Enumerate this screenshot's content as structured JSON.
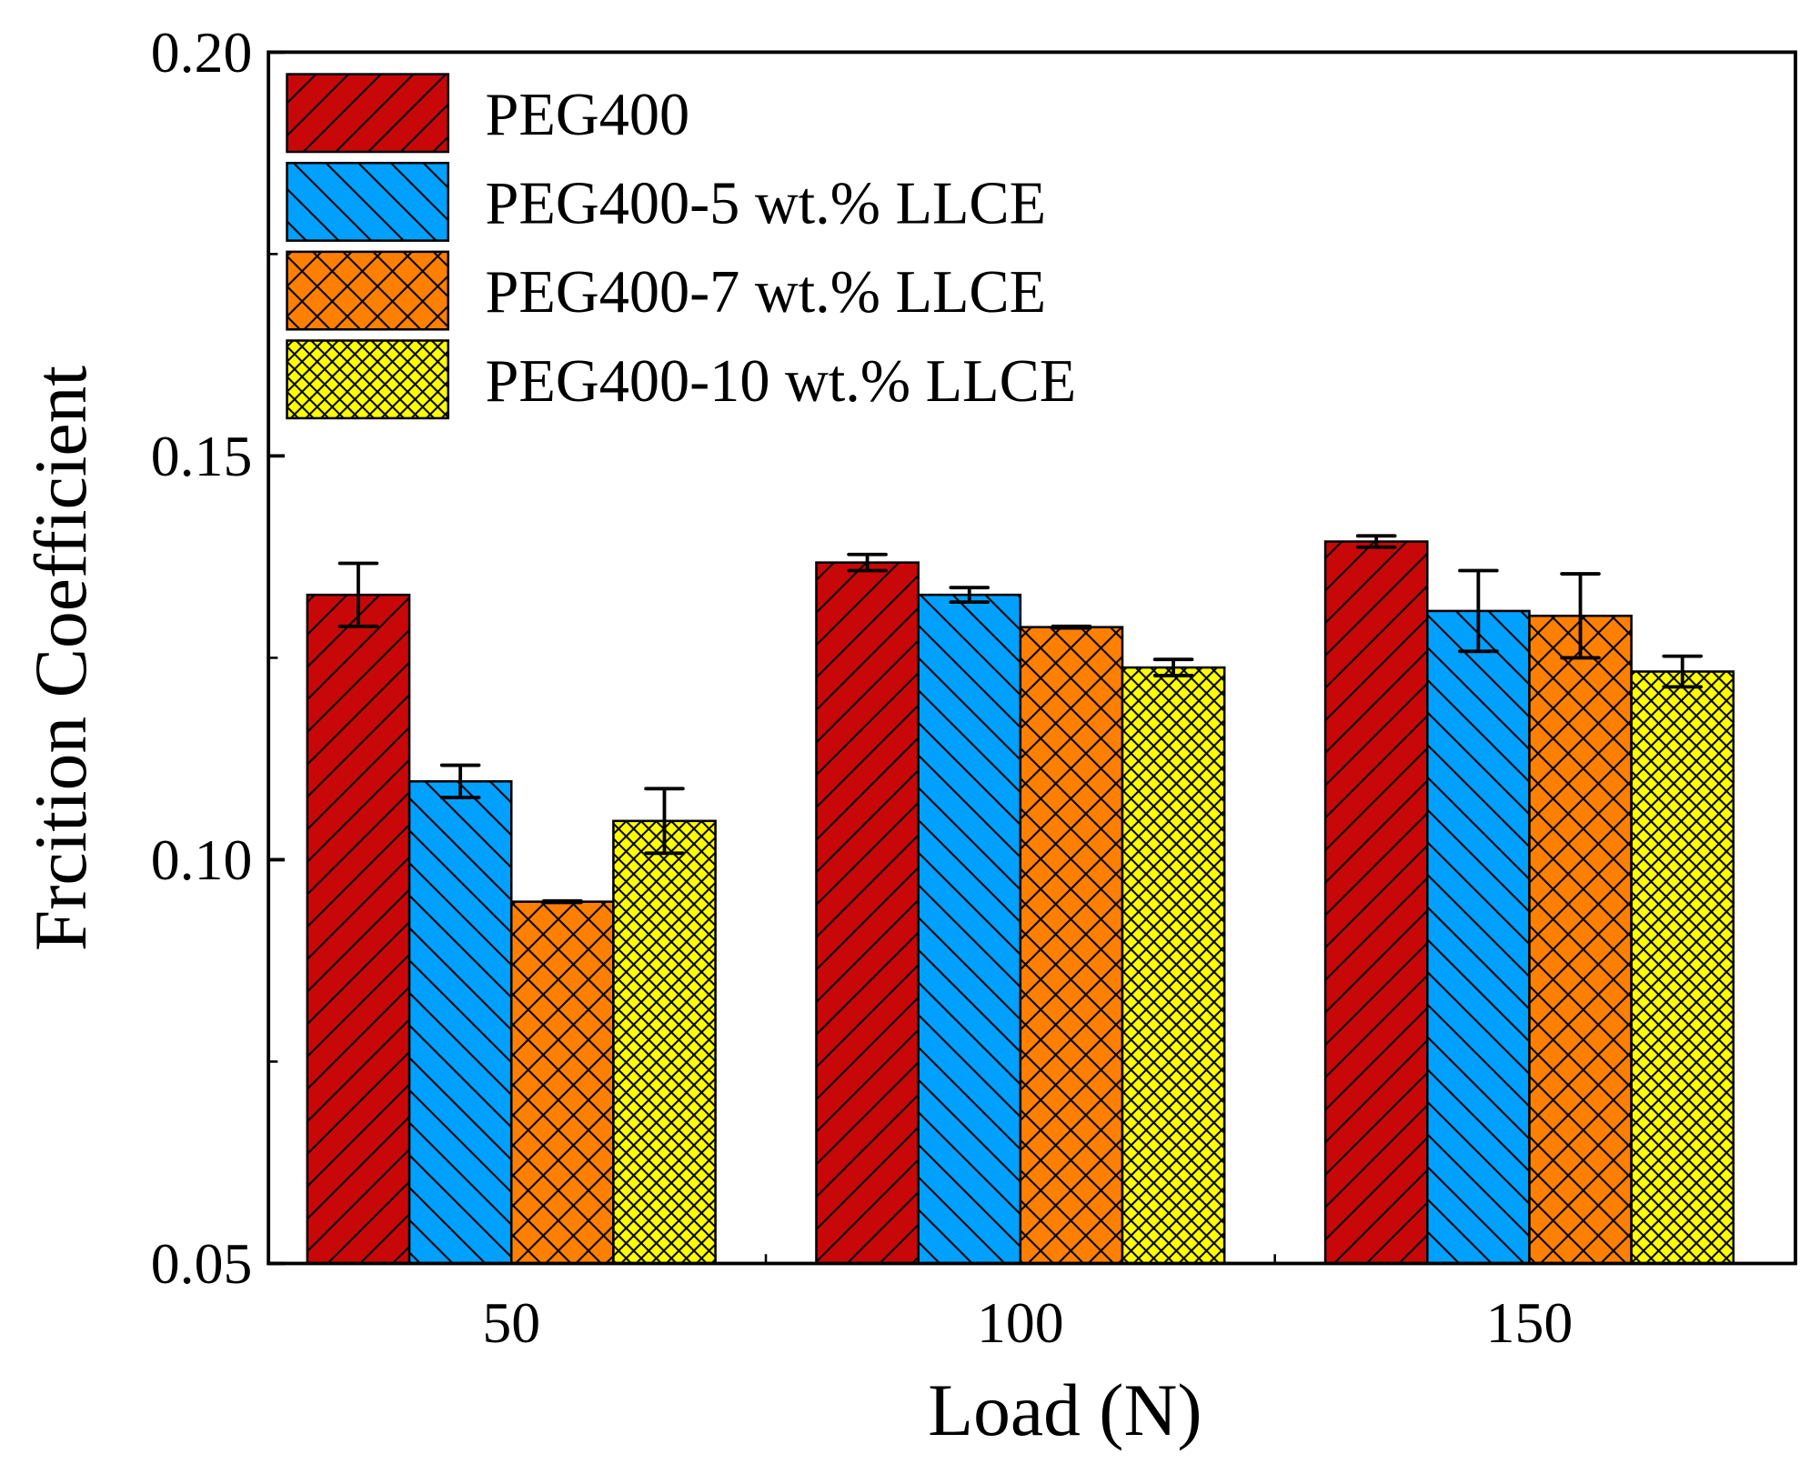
{
  "chart_data": {
    "type": "bar",
    "xlabel": "Load (N)",
    "ylabel": "Frcition Coefficient",
    "ylim": [
      0.05,
      0.2
    ],
    "yticks": [
      "0.05",
      "0.10",
      "0.15",
      "0.20"
    ],
    "ytick_values": [
      0.05,
      0.1,
      0.15,
      0.2
    ],
    "categories": [
      "50",
      "100",
      "150"
    ],
    "grid": false,
    "legend_position": "top-left",
    "series": [
      {
        "name": "PEG400",
        "color": "#c80808",
        "pattern": "forward-diagonal",
        "values": [
          0.1328,
          0.1368,
          0.1394
        ],
        "errors": [
          0.0039,
          0.001,
          0.0007
        ]
      },
      {
        "name": "PEG400-5 wt.% LLCE",
        "color": "#00a0ff",
        "pattern": "backward-diagonal",
        "values": [
          0.1097,
          0.1328,
          0.1308
        ],
        "errors": [
          0.002,
          0.0009,
          0.005
        ]
      },
      {
        "name": "PEG400-7 wt.% LLCE",
        "color": "#ff8000",
        "pattern": "crosshatch",
        "values": [
          0.0948,
          0.1288,
          0.1302
        ],
        "errors": [
          0.0001,
          0.0001,
          0.0052
        ]
      },
      {
        "name": "PEG400-10 wt.% LLCE",
        "color": "#ffff00",
        "pattern": "fine-crosshatch",
        "values": [
          0.1048,
          0.1238,
          0.1233
        ],
        "errors": [
          0.004,
          0.001,
          0.0019
        ]
      }
    ]
  }
}
